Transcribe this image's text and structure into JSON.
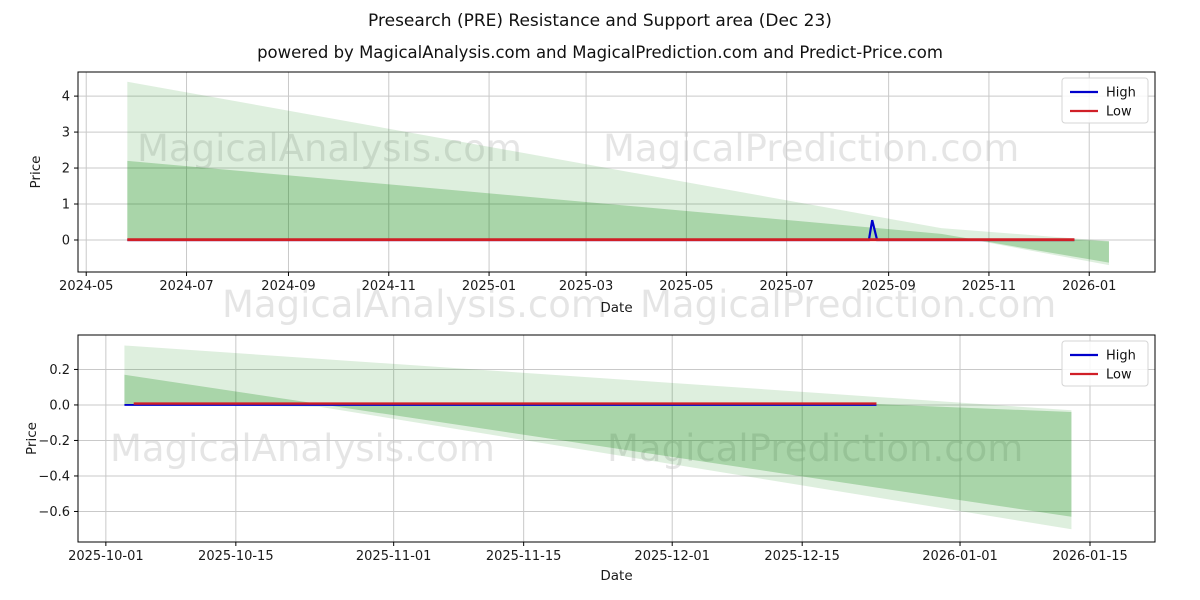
{
  "title": "Presearch (PRE) Resistance and Support area (Dec 23)",
  "subtitle": "powered by MagicalAnalysis.com and MagicalPrediction.com and Predict-Price.com",
  "watermark_left": "MagicalAnalysis.com",
  "watermark_right": "MagicalPrediction.com",
  "legend": {
    "high_label": "High",
    "low_label": "Low"
  },
  "colors": {
    "high_line": "#0000cc",
    "low_line": "#d01f27",
    "band_green": "#008000",
    "grid": "#c9c9c9",
    "spine": "#000000",
    "tick_text": "#1a1a1a"
  },
  "chart_data": [
    {
      "type": "area",
      "name": "full-history",
      "xlabel": "Date",
      "ylabel": "Price",
      "xlim": [
        "2024-04-26",
        "2026-02-10"
      ],
      "ylim": [
        -0.89,
        4.67
      ],
      "grid": true,
      "legend_position": "upper right",
      "xticks": [
        {
          "date": "2024-05-01",
          "label": "2024-05"
        },
        {
          "date": "2024-07-01",
          "label": "2024-07"
        },
        {
          "date": "2024-09-01",
          "label": "2024-09"
        },
        {
          "date": "2024-11-01",
          "label": "2024-11"
        },
        {
          "date": "2025-01-01",
          "label": "2025-01"
        },
        {
          "date": "2025-03-01",
          "label": "2025-03"
        },
        {
          "date": "2025-05-01",
          "label": "2025-05"
        },
        {
          "date": "2025-07-01",
          "label": "2025-07"
        },
        {
          "date": "2025-09-01",
          "label": "2025-09"
        },
        {
          "date": "2025-11-01",
          "label": "2025-11"
        },
        {
          "date": "2026-01-01",
          "label": "2026-01"
        }
      ],
      "yticks": [
        {
          "value": 0,
          "label": "0"
        },
        {
          "value": 1,
          "label": "1"
        },
        {
          "value": 2,
          "label": "2"
        },
        {
          "value": 3,
          "label": "3"
        },
        {
          "value": 4,
          "label": "4"
        }
      ],
      "series": {
        "high": {
          "label": "High",
          "points": [
            [
              "2024-05-26",
              0.0
            ],
            [
              "2025-08-20",
              0.0
            ],
            [
              "2025-08-22",
              0.55
            ],
            [
              "2025-08-25",
              0.0
            ],
            [
              "2025-12-23",
              0.0
            ]
          ]
        },
        "low": {
          "label": "Low",
          "points": [
            [
              "2024-05-26",
              0.008
            ],
            [
              "2025-12-23",
              0.008
            ]
          ]
        }
      },
      "bands": {
        "outer": {
          "top": [
            [
              "2024-05-26",
              4.4
            ],
            [
              "2025-10-03",
              0.33
            ],
            [
              "2026-01-13",
              -0.03
            ]
          ],
          "bottom": [
            [
              "2024-05-26",
              0.02
            ],
            [
              "2025-10-03",
              0.004
            ],
            [
              "2025-10-24",
              -0.01
            ],
            [
              "2026-01-13",
              -0.7
            ]
          ]
        },
        "inner": {
          "top": [
            [
              "2024-05-26",
              0.02
            ],
            [
              "2025-10-03",
              0.005
            ],
            [
              "2025-12-23",
              0.005
            ],
            [
              "2026-01-13",
              -0.04
            ]
          ],
          "bottom": [
            [
              "2024-05-26",
              2.2
            ],
            [
              "2025-10-03",
              0.17
            ],
            [
              "2025-10-24",
              0.005
            ],
            [
              "2026-01-13",
              -0.63
            ]
          ]
        }
      }
    },
    {
      "type": "area",
      "name": "forecast-zoom",
      "xlabel": "Date",
      "ylabel": "Price",
      "xlim": [
        "2025-09-28",
        "2026-01-22"
      ],
      "ylim": [
        -0.772,
        0.394
      ],
      "grid": true,
      "legend_position": "upper right",
      "xticks": [
        {
          "date": "2025-10-01",
          "label": "2025-10-01"
        },
        {
          "date": "2025-10-15",
          "label": "2025-10-15"
        },
        {
          "date": "2025-11-01",
          "label": "2025-11-01"
        },
        {
          "date": "2025-11-15",
          "label": "2025-11-15"
        },
        {
          "date": "2025-12-01",
          "label": "2025-12-01"
        },
        {
          "date": "2025-12-15",
          "label": "2025-12-15"
        },
        {
          "date": "2026-01-01",
          "label": "2026-01-01"
        },
        {
          "date": "2026-01-15",
          "label": "2026-01-15"
        }
      ],
      "yticks": [
        {
          "value": 0.2,
          "label": "0.2"
        },
        {
          "value": 0.0,
          "label": "0.0"
        },
        {
          "value": -0.2,
          "label": "−0.2"
        },
        {
          "value": -0.4,
          "label": "−0.4"
        },
        {
          "value": -0.6,
          "label": "−0.6"
        }
      ],
      "series": {
        "high": {
          "label": "High",
          "points": [
            [
              "2025-10-03",
              0.0
            ],
            [
              "2025-12-23",
              0.0
            ]
          ]
        },
        "low": {
          "label": "Low",
          "points": [
            [
              "2025-10-04",
              0.008
            ],
            [
              "2025-12-23",
              0.008
            ]
          ]
        }
      },
      "bands": {
        "outer": {
          "top": [
            [
              "2025-10-03",
              0.335
            ],
            [
              "2026-01-13",
              -0.03
            ]
          ],
          "bottom": [
            [
              "2025-10-03",
              0.004
            ],
            [
              "2025-10-24",
              -0.01
            ],
            [
              "2026-01-13",
              -0.7
            ]
          ]
        },
        "inner": {
          "top": [
            [
              "2025-10-03",
              0.005
            ],
            [
              "2025-12-23",
              0.005
            ],
            [
              "2026-01-13",
              -0.04
            ]
          ],
          "bottom": [
            [
              "2025-10-03",
              0.17
            ],
            [
              "2025-10-24",
              0.005
            ],
            [
              "2026-01-13",
              -0.63
            ]
          ]
        }
      }
    }
  ]
}
